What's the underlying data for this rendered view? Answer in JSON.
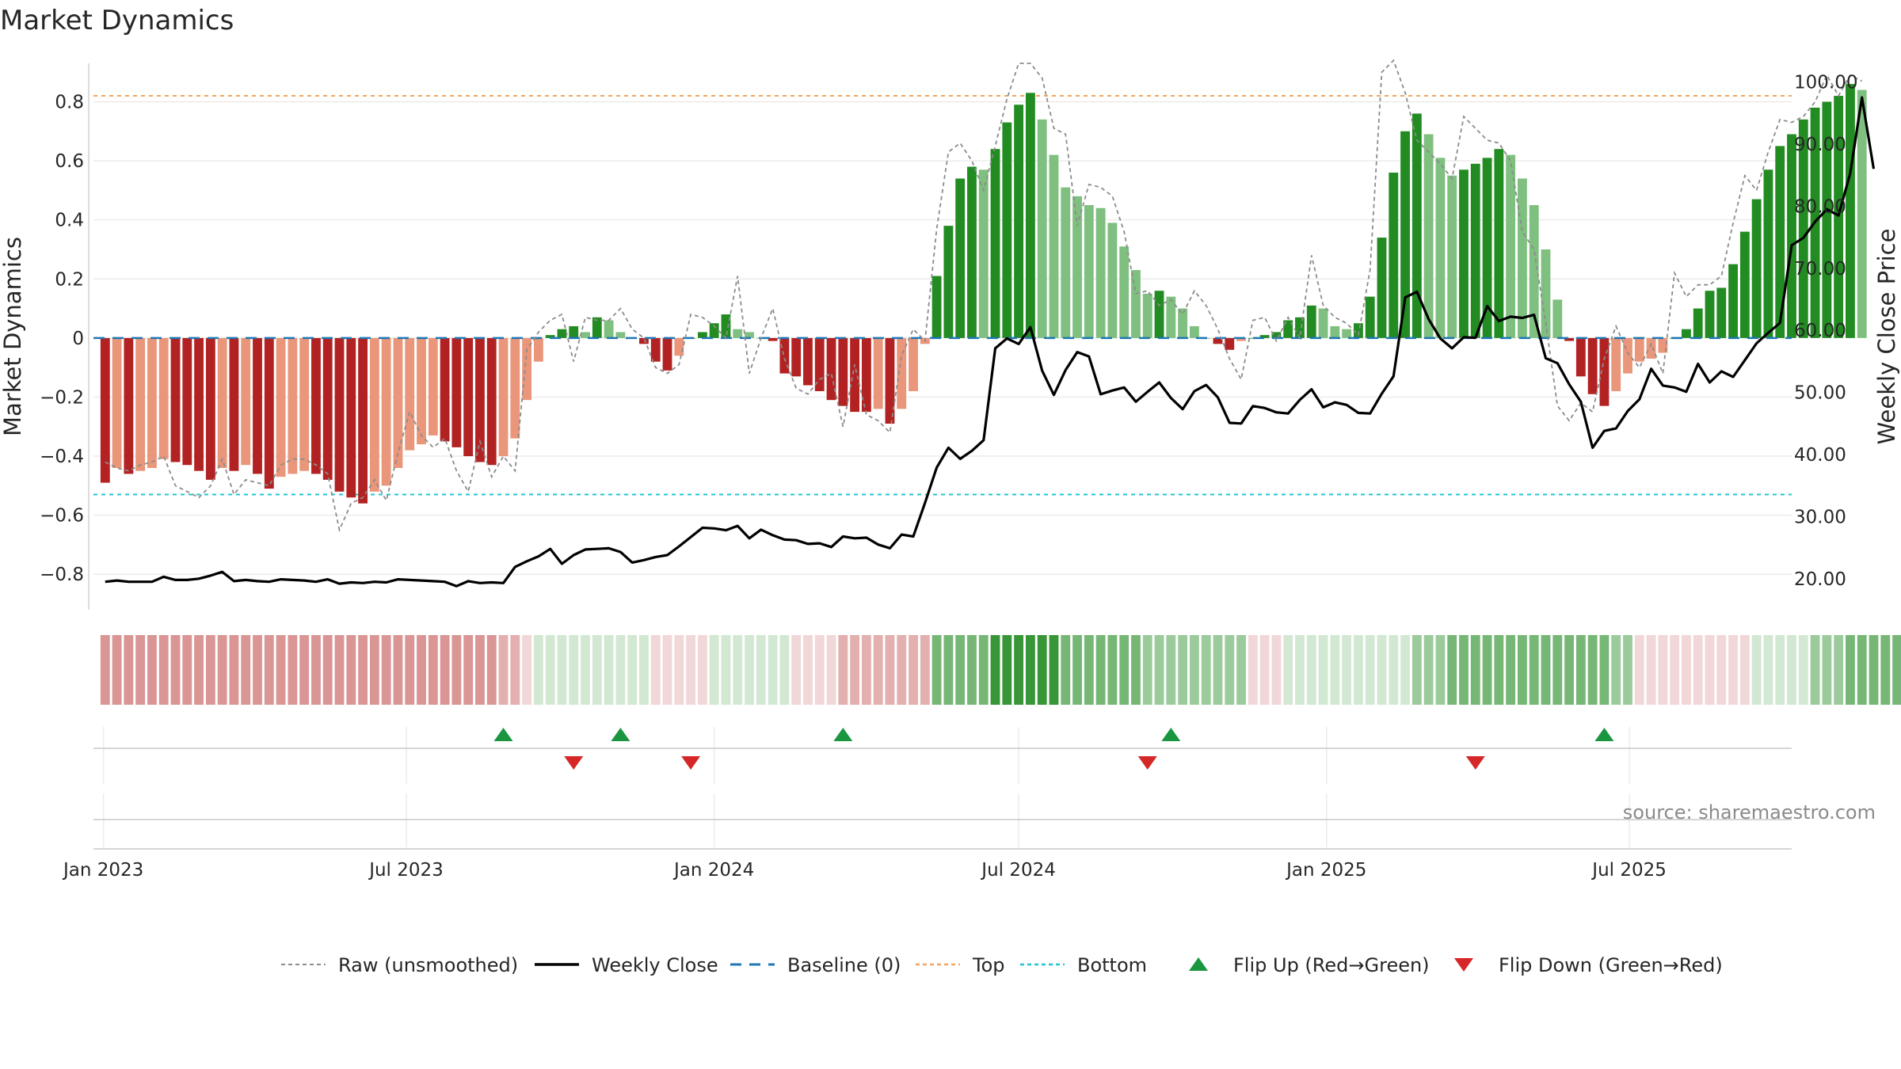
{
  "title": "Market Dynamics",
  "source": "source: sharemaestro.com",
  "chart_data": {
    "type": "bar",
    "title": "Market Dynamics",
    "x_start": "2023-01-02",
    "x_step_days": 7,
    "xlim": [
      "2022-12-26",
      "2025-10-06"
    ],
    "x_ticks": [
      {
        "date": "2023-01-01",
        "label": "Jan 2023"
      },
      {
        "date": "2023-07-01",
        "label": "Jul 2023"
      },
      {
        "date": "2024-01-01",
        "label": "Jan 2024"
      },
      {
        "date": "2024-07-01",
        "label": "Jul 2024"
      },
      {
        "date": "2025-01-01",
        "label": "Jan 2025"
      },
      {
        "date": "2025-07-01",
        "label": "Jul 2025"
      }
    ],
    "ylabel_left": "Market Dynamics",
    "ylabel_right": "Weekly Close Price",
    "ylim_left": [
      -0.92,
      0.93
    ],
    "ylim_right": [
      15,
      103
    ],
    "y_ticks_left": [
      {
        "value": 0.8,
        "label": "0.8"
      },
      {
        "value": 0.6,
        "label": "0.6"
      },
      {
        "value": 0.4,
        "label": "0.4"
      },
      {
        "value": 0.2,
        "label": "0.2"
      },
      {
        "value": 0,
        "label": "0"
      },
      {
        "value": -0.2,
        "label": "−0.2"
      },
      {
        "value": -0.4,
        "label": "−0.4"
      },
      {
        "value": -0.6,
        "label": "−0.6"
      },
      {
        "value": -0.8,
        "label": "−0.8"
      }
    ],
    "y_ticks_right": [
      {
        "value": 100,
        "label": "100.00"
      },
      {
        "value": 90,
        "label": "90.00"
      },
      {
        "value": 80,
        "label": "80.00"
      },
      {
        "value": 70,
        "label": "70.00"
      },
      {
        "value": 60,
        "label": "60.00"
      },
      {
        "value": 50,
        "label": "50.00"
      },
      {
        "value": 40,
        "label": "40.00"
      },
      {
        "value": 30,
        "label": "30.00"
      },
      {
        "value": 20,
        "label": "20.00"
      }
    ],
    "top_level": 0.82,
    "bottom_level": -0.53,
    "baseline": 0,
    "market_dynamics": [
      -0.49,
      -0.44,
      -0.46,
      -0.45,
      -0.44,
      -0.41,
      -0.42,
      -0.43,
      -0.45,
      -0.48,
      -0.44,
      -0.45,
      -0.43,
      -0.46,
      -0.51,
      -0.47,
      -0.46,
      -0.45,
      -0.46,
      -0.48,
      -0.52,
      -0.54,
      -0.56,
      -0.52,
      -0.5,
      -0.44,
      -0.38,
      -0.36,
      -0.33,
      -0.35,
      -0.37,
      -0.4,
      -0.42,
      -0.43,
      -0.4,
      -0.34,
      -0.21,
      -0.08,
      0.01,
      0.03,
      0.04,
      0.02,
      0.07,
      0.06,
      0.02,
      0.0,
      -0.02,
      -0.08,
      -0.11,
      -0.06,
      0.0,
      0.02,
      0.05,
      0.08,
      0.03,
      0.02,
      0.0,
      -0.01,
      -0.12,
      -0.13,
      -0.16,
      -0.18,
      -0.21,
      -0.23,
      -0.25,
      -0.25,
      -0.24,
      -0.29,
      -0.24,
      -0.18,
      -0.02,
      0.21,
      0.38,
      0.54,
      0.58,
      0.57,
      0.64,
      0.73,
      0.79,
      0.83,
      0.74,
      0.62,
      0.51,
      0.48,
      0.45,
      0.44,
      0.39,
      0.31,
      0.23,
      0.15,
      0.16,
      0.14,
      0.1,
      0.04,
      0.0,
      -0.02,
      -0.04,
      -0.01,
      0.0,
      0.01,
      0.02,
      0.06,
      0.07,
      0.11,
      0.1,
      0.04,
      0.03,
      0.05,
      0.14,
      0.34,
      0.56,
      0.7,
      0.76,
      0.69,
      0.61,
      0.55,
      0.57,
      0.59,
      0.61,
      0.64,
      0.62,
      0.54,
      0.45,
      0.3,
      0.13,
      -0.01,
      -0.13,
      -0.19,
      -0.23,
      -0.18,
      -0.12,
      -0.08,
      -0.07,
      -0.05,
      0.0,
      0.03,
      0.1,
      0.16,
      0.17,
      0.25,
      0.36,
      0.47,
      0.57,
      0.65,
      0.69,
      0.74,
      0.78,
      0.8,
      0.82,
      0.86,
      0.84
    ],
    "raw_unsmoothed": [
      -0.42,
      -0.44,
      -0.45,
      -0.43,
      -0.42,
      -0.4,
      -0.5,
      -0.52,
      -0.54,
      -0.5,
      -0.41,
      -0.53,
      -0.48,
      -0.49,
      -0.5,
      -0.43,
      -0.41,
      -0.41,
      -0.43,
      -0.46,
      -0.65,
      -0.56,
      -0.54,
      -0.48,
      -0.55,
      -0.39,
      -0.25,
      -0.33,
      -0.37,
      -0.34,
      -0.45,
      -0.52,
      -0.35,
      -0.47,
      -0.4,
      -0.45,
      -0.04,
      0.02,
      0.06,
      0.08,
      -0.08,
      0.07,
      0.06,
      0.06,
      0.1,
      0.03,
      0.0,
      -0.1,
      -0.12,
      -0.09,
      0.08,
      0.07,
      0.04,
      0.0,
      0.21,
      -0.12,
      0.0,
      0.1,
      -0.07,
      -0.17,
      -0.19,
      -0.14,
      -0.12,
      -0.3,
      -0.09,
      -0.26,
      -0.28,
      -0.32,
      -0.06,
      0.03,
      -0.01,
      0.37,
      0.63,
      0.66,
      0.6,
      0.5,
      0.65,
      0.81,
      0.93,
      0.93,
      0.88,
      0.71,
      0.69,
      0.38,
      0.52,
      0.51,
      0.48,
      0.36,
      0.15,
      0.16,
      0.11,
      0.13,
      0.08,
      0.16,
      0.11,
      0.03,
      -0.07,
      -0.14,
      0.06,
      0.07,
      -0.01,
      0.07,
      0.0,
      0.28,
      0.11,
      0.07,
      0.05,
      0.01,
      0.23,
      0.9,
      0.94,
      0.83,
      0.67,
      0.63,
      0.59,
      0.54,
      0.75,
      0.71,
      0.67,
      0.66,
      0.6,
      0.36,
      0.3,
      0.05,
      -0.23,
      -0.28,
      -0.22,
      -0.25,
      -0.07,
      0.04,
      -0.05,
      -0.1,
      -0.02,
      -0.12,
      0.22,
      0.14,
      0.18,
      0.18,
      0.21,
      0.39,
      0.55,
      0.5,
      0.63,
      0.74,
      0.73,
      0.75,
      0.8,
      0.89,
      0.82,
      0.89,
      0.87
    ],
    "weekly_close": [
      19.5,
      19.7,
      19.5,
      19.5,
      19.5,
      20.3,
      19.8,
      19.8,
      20.0,
      20.5,
      21.1,
      19.6,
      19.8,
      19.6,
      19.5,
      19.9,
      19.8,
      19.7,
      19.5,
      19.9,
      19.2,
      19.4,
      19.3,
      19.5,
      19.4,
      19.9,
      19.8,
      19.7,
      19.6,
      19.5,
      18.8,
      19.6,
      19.3,
      19.4,
      19.3,
      21.9,
      22.8,
      23.6,
      24.8,
      22.4,
      23.8,
      24.7,
      24.8,
      24.9,
      24.3,
      22.6,
      23.0,
      23.5,
      23.8,
      25.2,
      26.7,
      28.2,
      28.1,
      27.8,
      28.5,
      26.5,
      27.9,
      27.0,
      26.3,
      26.2,
      25.6,
      25.7,
      25.1,
      26.8,
      26.5,
      26.6,
      25.5,
      24.9,
      27.1,
      26.8,
      32.2,
      37.9,
      41.1,
      39.3,
      40.6,
      42.3,
      57.1,
      58.7,
      57.8,
      60.5,
      53.5,
      49.6,
      53.6,
      56.5,
      55.8,
      49.7,
      50.3,
      50.8,
      48.5,
      50.1,
      51.6,
      49.1,
      47.3,
      50.2,
      51.2,
      49.2,
      45.1,
      45.0,
      47.8,
      47.5,
      46.8,
      46.6,
      48.8,
      50.5,
      47.6,
      48.4,
      48.0,
      46.7,
      46.6,
      49.8,
      52.6,
      65.3,
      66.2,
      61.8,
      58.7,
      57.1,
      58.9,
      58.8,
      63.9,
      61.5,
      62.2,
      62.0,
      62.5,
      55.5,
      54.7,
      51.3,
      48.5,
      41.1,
      43.8,
      44.2,
      47.0,
      48.9,
      53.8,
      51.1,
      50.8,
      50.1,
      54.6,
      51.6,
      53.4,
      52.5,
      55.2,
      57.9,
      59.6,
      61.2,
      73.7,
      74.9,
      77.5,
      79.5,
      78.5,
      85.3,
      97.5,
      86.0
    ],
    "regime_strip": [
      -3,
      -3,
      -3,
      -3,
      -3,
      -3,
      -3,
      -3,
      -3,
      -3,
      -3,
      -3,
      -3,
      -3,
      -3,
      -3,
      -3,
      -3,
      -3,
      -3,
      -3,
      -3,
      -3,
      -3,
      -3,
      -3,
      -3,
      -3,
      -3,
      -3,
      -3,
      -3,
      -3,
      -3,
      -2,
      -2,
      -1,
      1,
      1,
      1,
      1,
      1,
      1,
      1,
      1,
      1,
      1,
      -1,
      -1,
      -1,
      -1,
      -1,
      1,
      1,
      1,
      1,
      1,
      1,
      1,
      -1,
      -1,
      -1,
      -1,
      -2,
      -2,
      -2,
      -2,
      -2,
      -2,
      -2,
      -2,
      3,
      3,
      3,
      3,
      3,
      4,
      4,
      4,
      4,
      4,
      4,
      3,
      3,
      3,
      3,
      3,
      3,
      3,
      2,
      2,
      2,
      2,
      2,
      2,
      2,
      2,
      2,
      -1,
      -1,
      -1,
      1,
      1,
      1,
      1,
      1,
      1,
      1,
      1,
      1,
      1,
      1,
      2,
      2,
      2,
      3,
      3,
      3,
      3,
      3,
      3,
      3,
      3,
      3,
      3,
      3,
      3,
      3,
      3,
      2,
      2,
      -1,
      -1,
      -1,
      -1,
      -1,
      -1,
      -1,
      -1,
      -1,
      -1,
      1,
      1,
      1,
      1,
      1,
      2,
      2,
      2,
      3,
      3,
      3,
      3,
      3,
      3,
      3,
      4,
      4,
      4,
      4,
      4
    ],
    "flip_up": [
      "2023-08-28",
      "2023-11-06",
      "2024-03-18",
      "2024-09-30",
      "2025-06-16"
    ],
    "flip_down": [
      "2023-10-09",
      "2023-12-18",
      "2024-09-16",
      "2025-03-31"
    ],
    "colors": {
      "bar_green_dark": "#228b22",
      "bar_green_light": "#7fbf7f",
      "bar_red_dark": "#b22222",
      "bar_red_light": "#e9967a",
      "raw_line": "#8c8c8c",
      "close_line": "#000000",
      "baseline": "#1f77b4",
      "top": "#f4a460",
      "bottom": "#20c5d0",
      "flip_up": "#1a9641",
      "flip_down": "#d62728"
    },
    "legend": [
      {
        "key": "raw",
        "label": "Raw (unsmoothed)"
      },
      {
        "key": "close",
        "label": "Weekly Close"
      },
      {
        "key": "baseline",
        "label": "Baseline (0)"
      },
      {
        "key": "top",
        "label": "Top"
      },
      {
        "key": "bottom",
        "label": "Bottom"
      },
      {
        "key": "flip_up",
        "label": "Flip Up (Red→Green)"
      },
      {
        "key": "flip_down",
        "label": "Flip Down (Green→Red)"
      }
    ],
    "legend_position": "bottom-center",
    "grid": true
  }
}
